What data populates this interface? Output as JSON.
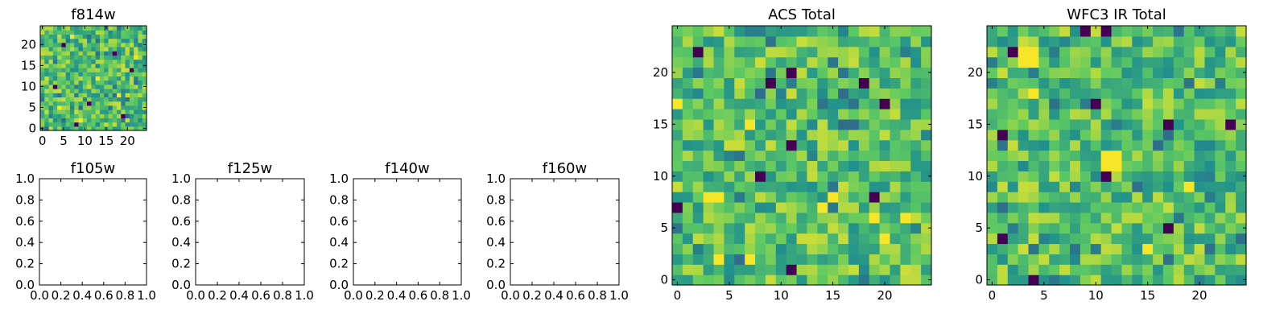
{
  "chart_data": [
    {
      "id": "f814w",
      "type": "heatmap",
      "title": "f814w",
      "grid_size": 25,
      "xlim": [
        0,
        25
      ],
      "ylim": [
        0,
        25
      ],
      "xticks": [
        0,
        5,
        10,
        15,
        20
      ],
      "yticks": [
        0,
        5,
        10,
        15,
        20
      ],
      "xtick_labels": [
        "0",
        "5",
        "10",
        "15",
        "20"
      ],
      "ytick_labels": [
        "0",
        "5",
        "10",
        "15",
        "20"
      ],
      "colormap": "viridis",
      "seed": 814,
      "dark_cells": [
        [
          5,
          20
        ],
        [
          17,
          18
        ],
        [
          21,
          14
        ],
        [
          3,
          10
        ],
        [
          11,
          6
        ],
        [
          19,
          3
        ],
        [
          8,
          1
        ]
      ],
      "bright_cells": [
        [
          7,
          22
        ],
        [
          13,
          12
        ],
        [
          4,
          5
        ],
        [
          18,
          8
        ],
        [
          9,
          2
        ],
        [
          22,
          17
        ]
      ]
    },
    {
      "id": "ACS Total",
      "type": "heatmap",
      "title": "ACS Total",
      "grid_size": 25,
      "xlim": [
        0,
        25
      ],
      "ylim": [
        0,
        25
      ],
      "xticks": [
        0,
        5,
        10,
        15,
        20
      ],
      "yticks": [
        0,
        5,
        10,
        15,
        20
      ],
      "xtick_labels": [
        "0",
        "5",
        "10",
        "15",
        "20"
      ],
      "ytick_labels": [
        "0",
        "5",
        "10",
        "15",
        "20"
      ],
      "colormap": "viridis",
      "seed": 1001,
      "dark_cells": [
        [
          2,
          22
        ],
        [
          9,
          19
        ],
        [
          11,
          20
        ],
        [
          18,
          19
        ],
        [
          20,
          17
        ],
        [
          11,
          13
        ],
        [
          8,
          10
        ],
        [
          19,
          8
        ],
        [
          0,
          7
        ],
        [
          11,
          1
        ]
      ],
      "bright_cells": [
        [
          3,
          8
        ],
        [
          4,
          8
        ],
        [
          0,
          17
        ],
        [
          7,
          15
        ],
        [
          15,
          8
        ],
        [
          19,
          6
        ],
        [
          20,
          4
        ],
        [
          22,
          6
        ],
        [
          4,
          2
        ],
        [
          7,
          2
        ],
        [
          14,
          7
        ]
      ]
    },
    {
      "id": "WFC3 IR Total",
      "type": "heatmap",
      "title": "WFC3 IR Total",
      "grid_size": 25,
      "xlim": [
        0,
        25
      ],
      "ylim": [
        0,
        25
      ],
      "xticks": [
        0,
        5,
        10,
        15,
        20
      ],
      "yticks": [
        0,
        5,
        10,
        15,
        20
      ],
      "xtick_labels": [
        "0",
        "5",
        "10",
        "15",
        "20"
      ],
      "ytick_labels": [
        "0",
        "5",
        "10",
        "15",
        "20"
      ],
      "colormap": "viridis",
      "seed": 3003,
      "dark_cells": [
        [
          9,
          24
        ],
        [
          11,
          24
        ],
        [
          2,
          22
        ],
        [
          10,
          17
        ],
        [
          17,
          15
        ],
        [
          23,
          15
        ],
        [
          1,
          14
        ],
        [
          11,
          10
        ],
        [
          1,
          4
        ],
        [
          17,
          5
        ],
        [
          4,
          0
        ]
      ],
      "bright_cells": [
        [
          3,
          22
        ],
        [
          4,
          22
        ],
        [
          3,
          21
        ],
        [
          4,
          21
        ],
        [
          4,
          18
        ],
        [
          11,
          11
        ],
        [
          12,
          11
        ],
        [
          11,
          12
        ],
        [
          12,
          12
        ],
        [
          15,
          3
        ],
        [
          19,
          9
        ]
      ]
    },
    {
      "id": "f105w",
      "type": "empty",
      "title": "f105w",
      "xlim": [
        0.0,
        1.0
      ],
      "ylim": [
        0.0,
        1.0
      ],
      "xtick_labels": [
        "0.0",
        "0.2",
        "0.4",
        "0.6",
        "0.8",
        "1.0"
      ],
      "ytick_labels": [
        "0.0",
        "0.2",
        "0.4",
        "0.6",
        "0.8",
        "1.0"
      ]
    },
    {
      "id": "f125w",
      "type": "empty",
      "title": "f125w",
      "xlim": [
        0.0,
        1.0
      ],
      "ylim": [
        0.0,
        1.0
      ],
      "xtick_labels": [
        "0.0",
        "0.2",
        "0.4",
        "0.6",
        "0.8",
        "1.0"
      ],
      "ytick_labels": [
        "0.0",
        "0.2",
        "0.4",
        "0.6",
        "0.8",
        "1.0"
      ]
    },
    {
      "id": "f140w",
      "type": "empty",
      "title": "f140w",
      "xlim": [
        0.0,
        1.0
      ],
      "ylim": [
        0.0,
        1.0
      ],
      "xtick_labels": [
        "0.0",
        "0.2",
        "0.4",
        "0.6",
        "0.8",
        "1.0"
      ],
      "ytick_labels": [
        "0.0",
        "0.2",
        "0.4",
        "0.6",
        "0.8",
        "1.0"
      ]
    },
    {
      "id": "f160w",
      "type": "empty",
      "title": "f160w",
      "xlim": [
        0.0,
        1.0
      ],
      "ylim": [
        0.0,
        1.0
      ],
      "xtick_labels": [
        "0.0",
        "0.2",
        "0.4",
        "0.6",
        "0.8",
        "1.0"
      ],
      "ytick_labels": [
        "0.0",
        "0.2",
        "0.4",
        "0.6",
        "0.8",
        "1.0"
      ]
    }
  ],
  "colormap_stops": [
    "#440154",
    "#3b528b",
    "#21918c",
    "#5ec962",
    "#fde725"
  ]
}
